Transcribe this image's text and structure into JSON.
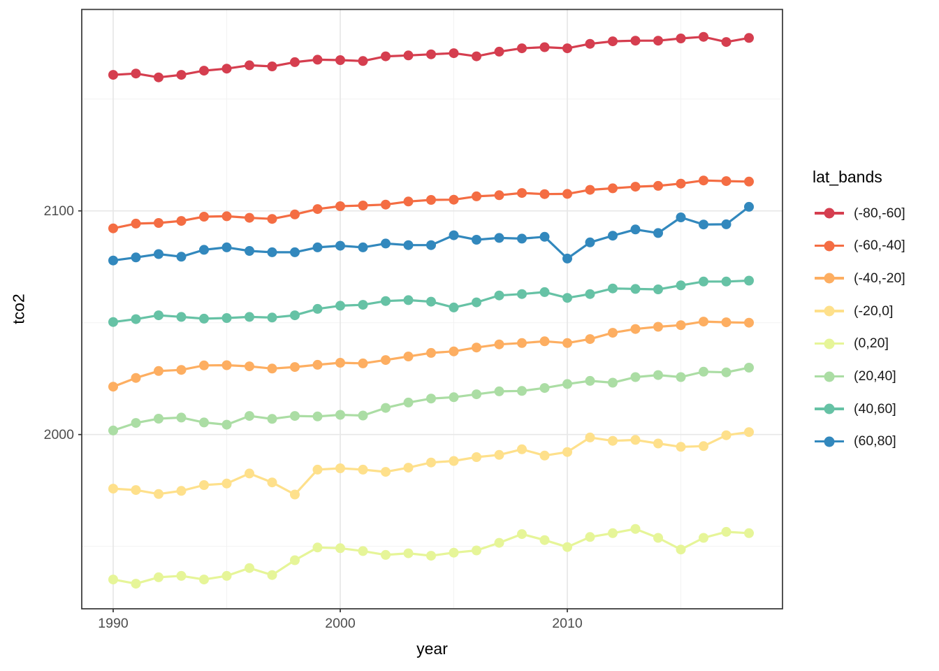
{
  "figure": {
    "xlabel": "year",
    "ylabel": "tco2",
    "legend_title": "lat_bands"
  },
  "chart_data": {
    "type": "line",
    "title": "",
    "xlabel": "year",
    "ylabel": "tco2",
    "legend_title": "lat_bands",
    "legend_position": "right",
    "grid": true,
    "marker": "point",
    "x": [
      1990,
      1991,
      1992,
      1993,
      1994,
      1995,
      1996,
      1997,
      1998,
      1999,
      2000,
      2001,
      2002,
      2003,
      2004,
      2005,
      2006,
      2007,
      2008,
      2009,
      2010,
      2011,
      2012,
      2013,
      2014,
      2015,
      2016,
      2017,
      2018
    ],
    "x_ticks_major": [
      1990,
      2000,
      2010
    ],
    "x_ticks_minor": [
      1995,
      2005,
      2015
    ],
    "y_ticks_major": [
      2100,
      2000
    ],
    "y_ticks_minor": [
      2150,
      2050,
      1950
    ],
    "xlim": [
      1988.6,
      2019.5
    ],
    "ylim": [
      1922,
      2190
    ],
    "colors": {
      "grid_major": "#e7e7e7",
      "grid_minor": "#f2f2f2",
      "panel_border": "#343434",
      "tick_label": "#4d4d4d",
      "axis_title": "#000000"
    },
    "series": [
      {
        "name": "(-80,-60]",
        "color": "#d53e4f",
        "values": [
          2160.8,
          2161.4,
          2159.7,
          2160.8,
          2162.7,
          2163.6,
          2165.1,
          2164.6,
          2166.5,
          2167.6,
          2167.4,
          2167.0,
          2169.1,
          2169.5,
          2170.0,
          2170.5,
          2169.1,
          2171.2,
          2172.7,
          2173.2,
          2172.7,
          2174.7,
          2175.8,
          2176.1,
          2176.1,
          2177.1,
          2177.8,
          2175.5,
          2177.3
        ]
      },
      {
        "name": "(-60,-40]",
        "color": "#f46d43",
        "values": [
          2092.2,
          2094.3,
          2094.6,
          2095.5,
          2097.4,
          2097.6,
          2096.9,
          2096.4,
          2098.4,
          2100.8,
          2102.1,
          2102.4,
          2102.8,
          2104.2,
          2104.9,
          2105.0,
          2106.5,
          2107.0,
          2108.0,
          2107.5,
          2107.6,
          2109.4,
          2110.1,
          2110.8,
          2111.2,
          2112.2,
          2113.6,
          2113.3,
          2113.1
        ]
      },
      {
        "name": "(-40,-20]",
        "color": "#fdae61",
        "values": [
          2021.4,
          2025.3,
          2028.4,
          2028.9,
          2030.9,
          2031.0,
          2030.5,
          2029.5,
          2030.2,
          2031.2,
          2032.1,
          2031.8,
          2033.3,
          2034.9,
          2036.5,
          2037.2,
          2038.9,
          2040.3,
          2040.9,
          2041.7,
          2040.9,
          2042.7,
          2045.5,
          2047.2,
          2048.2,
          2048.9,
          2050.5,
          2050.2,
          2050.0
        ]
      },
      {
        "name": "(-20,0]",
        "color": "#fee08b",
        "values": [
          1975.8,
          1975.2,
          1973.4,
          1974.8,
          1977.4,
          1978.1,
          1982.6,
          1978.6,
          1973.2,
          1984.3,
          1984.9,
          1984.3,
          1983.3,
          1985.2,
          1987.5,
          1988.2,
          1989.9,
          1990.9,
          1993.4,
          1990.6,
          1992.2,
          1998.7,
          1997.2,
          1997.6,
          1996.0,
          1994.5,
          1994.8,
          1999.7,
          2001.1
        ]
      },
      {
        "name": "(0,20]",
        "color": "#e6f598",
        "values": [
          1935.2,
          1933.3,
          1936.2,
          1936.8,
          1935.2,
          1936.8,
          1940.3,
          1937.2,
          1943.8,
          1949.5,
          1949.2,
          1947.9,
          1946.2,
          1946.9,
          1945.8,
          1947.2,
          1948.2,
          1951.6,
          1955.5,
          1952.8,
          1949.7,
          1954.2,
          1955.9,
          1957.8,
          1953.8,
          1948.6,
          1953.8,
          1956.5,
          1955.9
        ]
      },
      {
        "name": "(20,40]",
        "color": "#abdda4",
        "values": [
          2001.8,
          2005.2,
          2007.1,
          2007.6,
          2005.4,
          2004.4,
          2008.3,
          2007.0,
          2008.3,
          2008.1,
          2008.8,
          2008.5,
          2011.9,
          2014.3,
          2016.1,
          2016.7,
          2018.0,
          2019.3,
          2019.5,
          2020.8,
          2022.6,
          2024.0,
          2023.2,
          2025.7,
          2026.6,
          2025.7,
          2028.1,
          2027.8,
          2029.9
        ]
      },
      {
        "name": "(40,60]",
        "color": "#66c2a5",
        "values": [
          2050.3,
          2051.6,
          2053.3,
          2052.6,
          2051.8,
          2052.1,
          2052.6,
          2052.3,
          2053.3,
          2056.2,
          2057.6,
          2058.0,
          2059.7,
          2060.1,
          2059.4,
          2056.8,
          2059.1,
          2062.2,
          2062.8,
          2063.7,
          2061.1,
          2062.8,
          2065.3,
          2065.1,
          2064.9,
          2066.7,
          2068.4,
          2068.4,
          2068.8
        ]
      },
      {
        "name": "(60,80]",
        "color": "#3288bd",
        "values": [
          2077.8,
          2079.2,
          2080.7,
          2079.5,
          2082.6,
          2083.7,
          2082.1,
          2081.5,
          2081.5,
          2083.7,
          2084.4,
          2083.7,
          2085.4,
          2084.7,
          2084.7,
          2089.1,
          2087.1,
          2087.9,
          2087.6,
          2088.4,
          2078.7,
          2085.9,
          2088.9,
          2091.7,
          2090.1,
          2097.1,
          2093.9,
          2094.0,
          2101.8
        ]
      }
    ]
  }
}
